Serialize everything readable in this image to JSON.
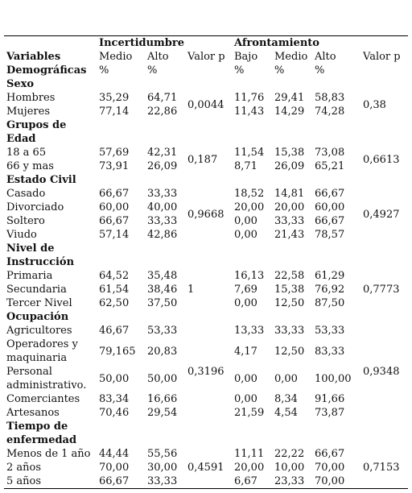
{
  "header": {
    "group_uncertainty": "Incertidumbre",
    "group_coping": "Afrontamiento",
    "variables_line1": "Variables",
    "variables_line2": "Demográficas",
    "inc_medio": "Medio",
    "inc_alto": "Alto",
    "valor_p_1": "Valor p",
    "afr_bajo": "Bajo",
    "afr_medio": "Medio",
    "afr_alto": "Alto",
    "valor_p_2": "Valor p",
    "pct": "%"
  },
  "sections": [
    {
      "title": [
        "Sexo"
      ],
      "p1": "0,0044",
      "p2": "0,38",
      "rows": [
        {
          "label": [
            "Hombres"
          ],
          "inc_medio": "35,29",
          "inc_alto": "64,71",
          "afr_bajo": "11,76",
          "afr_medio": "29,41",
          "afr_alto": "58,83"
        },
        {
          "label": [
            "Mujeres"
          ],
          "inc_medio": "77,14",
          "inc_alto": "22,86",
          "afr_bajo": "11,43",
          "afr_medio": "14,29",
          "afr_alto": "74,28"
        }
      ]
    },
    {
      "title": [
        "Grupos de",
        "Edad"
      ],
      "p1": "0,187",
      "p2": "0,6613",
      "rows": [
        {
          "label": [
            "18 a 65"
          ],
          "inc_medio": "57,69",
          "inc_alto": "42,31",
          "afr_bajo": "11,54",
          "afr_medio": "15,38",
          "afr_alto": "73,08"
        },
        {
          "label": [
            "66 y mas"
          ],
          "inc_medio": "73,91",
          "inc_alto": "26,09",
          "afr_bajo": "8,71",
          "afr_medio": "26,09",
          "afr_alto": "65,21"
        }
      ]
    },
    {
      "title": [
        "Estado Civil"
      ],
      "p1": "0,9668",
      "p2": "0,4927",
      "rows": [
        {
          "label": [
            "Casado"
          ],
          "inc_medio": "66,67",
          "inc_alto": "33,33",
          "afr_bajo": "18,52",
          "afr_medio": "14,81",
          "afr_alto": "66,67"
        },
        {
          "label": [
            "Divorciado"
          ],
          "inc_medio": "60,00",
          "inc_alto": "40,00",
          "afr_bajo": "20,00",
          "afr_medio": "20,00",
          "afr_alto": "60,00"
        },
        {
          "label": [
            "Soltero"
          ],
          "inc_medio": "66,67",
          "inc_alto": "33,33",
          "afr_bajo": "0,00",
          "afr_medio": "33,33",
          "afr_alto": "66,67"
        },
        {
          "label": [
            "Viudo"
          ],
          "inc_medio": "57,14",
          "inc_alto": "42,86",
          "afr_bajo": "0,00",
          "afr_medio": "21,43",
          "afr_alto": "78,57"
        }
      ]
    },
    {
      "title": [
        "Nivel de",
        "Instrucción"
      ],
      "p1": "1",
      "p2": "0,7773",
      "rows": [
        {
          "label": [
            "Primaria"
          ],
          "inc_medio": "64,52",
          "inc_alto": "35,48",
          "afr_bajo": "16,13",
          "afr_medio": "22,58",
          "afr_alto": "61,29"
        },
        {
          "label": [
            "Secundaria"
          ],
          "inc_medio": "61,54",
          "inc_alto": "38,46",
          "afr_bajo": "7,69",
          "afr_medio": "15,38",
          "afr_alto": "76,92"
        },
        {
          "label": [
            "Tercer Nivel"
          ],
          "inc_medio": "62,50",
          "inc_alto": "37,50",
          "afr_bajo": "0,00",
          "afr_medio": "12,50",
          "afr_alto": "87,50"
        }
      ]
    },
    {
      "title": [
        "Ocupación"
      ],
      "p1": "0,3196",
      "p2": "0,9348",
      "rows": [
        {
          "label": [
            "Agricultores"
          ],
          "inc_medio": "46,67",
          "inc_alto": "53,33",
          "afr_bajo": "13,33",
          "afr_medio": "33,33",
          "afr_alto": "53,33"
        },
        {
          "label": [
            "Operadores y",
            "maquinaria"
          ],
          "inc_medio": "79,165",
          "inc_alto": "20,83",
          "afr_bajo": "4,17",
          "afr_medio": "12,50",
          "afr_alto": "83,33"
        },
        {
          "label": [
            "Personal",
            "administrativo."
          ],
          "inc_medio": "50,00",
          "inc_alto": "50,00",
          "afr_bajo": "0,00",
          "afr_medio": "0,00",
          "afr_alto": "100,00"
        },
        {
          "label": [
            "Comerciantes"
          ],
          "inc_medio": "83,34",
          "inc_alto": "16,66",
          "afr_bajo": "0,00",
          "afr_medio": "8,34",
          "afr_alto": "91,66"
        },
        {
          "label": [
            "Artesanos"
          ],
          "inc_medio": "70,46",
          "inc_alto": "29,54",
          "afr_bajo": "21,59",
          "afr_medio": "4,54",
          "afr_alto": "73,87"
        }
      ]
    },
    {
      "title": [
        "Tiempo de",
        "enfermedad"
      ],
      "p1": "0,4591",
      "p2": "0,7153",
      "rows": [
        {
          "label": [
            "Menos de 1 año"
          ],
          "inc_medio": "44,44",
          "inc_alto": "55,56",
          "afr_bajo": "11,11",
          "afr_medio": "22,22",
          "afr_alto": "66,67"
        },
        {
          "label": [
            "2 años"
          ],
          "inc_medio": "70,00",
          "inc_alto": "30,00",
          "afr_bajo": "20,00",
          "afr_medio": "10,00",
          "afr_alto": "70,00"
        },
        {
          "label": [
            "5 años"
          ],
          "inc_medio": "66,67",
          "inc_alto": "33,33",
          "afr_bajo": "6,67",
          "afr_medio": "23,33",
          "afr_alto": "70,00"
        }
      ]
    }
  ]
}
